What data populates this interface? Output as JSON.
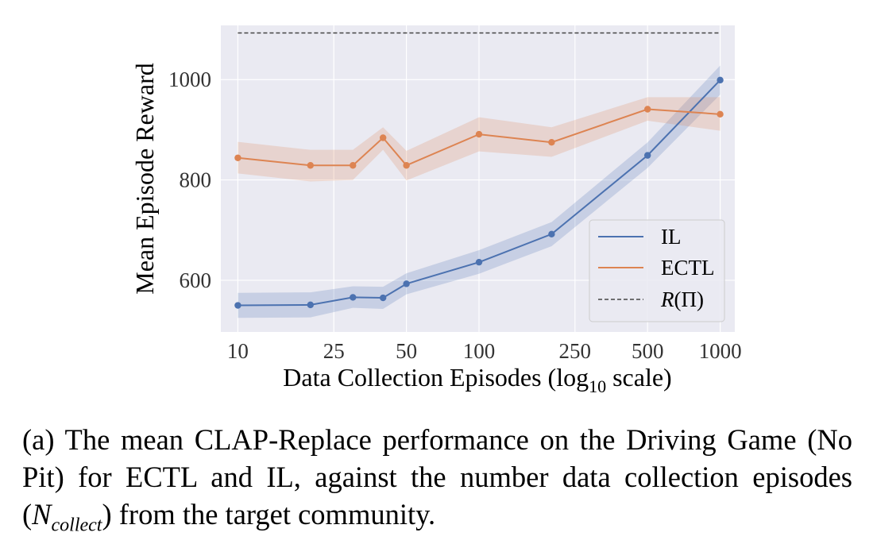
{
  "chart_data": {
    "type": "line",
    "xlabel": "Data Collection Episodes (log",
    "xlabel_sub": "10",
    "xlabel_suffix": " scale)",
    "ylabel": "Mean Episode Reward",
    "x_scale": "log",
    "xlim": [
      8.5,
      1150
    ],
    "ylim": [
      497,
      1108
    ],
    "grid": true,
    "x_ticks": [
      10,
      25,
      50,
      100,
      250,
      500,
      1000
    ],
    "x_tick_labels": [
      "10",
      "25",
      "50",
      "100",
      "250",
      "500",
      "1000"
    ],
    "y_ticks": [
      600,
      800,
      1000
    ],
    "y_tick_labels": [
      "600",
      "800",
      "1000"
    ],
    "legend_position": "lower-right",
    "x": [
      10,
      20,
      30,
      40,
      50,
      100,
      200,
      500,
      1000
    ],
    "series": [
      {
        "name": "IL",
        "color": "#4c72b0",
        "values": [
          550,
          551,
          566,
          565,
          593,
          636,
          692,
          849,
          999
        ],
        "band_lower": [
          525,
          526,
          545,
          543,
          572,
          613,
          668,
          824,
          970
        ],
        "band_upper": [
          575,
          576,
          588,
          587,
          614,
          660,
          716,
          875,
          1028
        ]
      },
      {
        "name": "ECTL",
        "color": "#dd8452",
        "values": [
          844,
          829,
          829,
          884,
          829,
          891,
          875,
          941,
          931
        ],
        "band_lower": [
          813,
          797,
          800,
          860,
          799,
          857,
          846,
          918,
          898
        ],
        "band_upper": [
          876,
          860,
          860,
          905,
          858,
          925,
          905,
          965,
          965
        ]
      }
    ],
    "reference_lines": [
      {
        "name": "R(Π)",
        "y": 1093,
        "color": "#444444",
        "style": "dashed"
      }
    ]
  },
  "legend": {
    "il": "IL",
    "ectl": "ECTL",
    "ref_prefix": "R",
    "ref_suffix": "(Π)"
  },
  "caption": {
    "text_1": "(a) The mean CLAP-Replace performance on the Driving Game (No Pit) for ECTL and IL, against the number data collection episodes (",
    "math_base": "N",
    "math_sub": "collect",
    "text_2": ") from the target community."
  }
}
